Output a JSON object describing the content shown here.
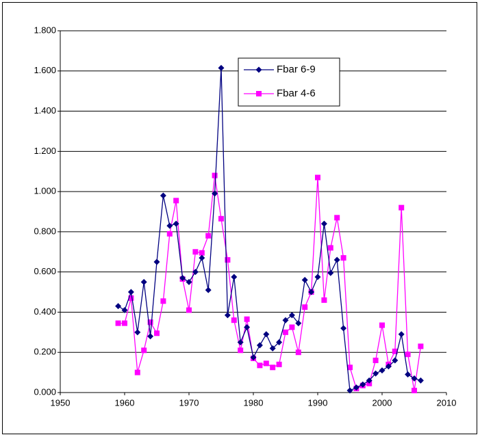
{
  "chart_data": {
    "type": "line",
    "x": [
      1959,
      1960,
      1961,
      1962,
      1963,
      1964,
      1965,
      1966,
      1967,
      1968,
      1969,
      1970,
      1971,
      1972,
      1973,
      1974,
      1975,
      1976,
      1977,
      1978,
      1979,
      1980,
      1981,
      1982,
      1983,
      1984,
      1985,
      1986,
      1987,
      1988,
      1989,
      1990,
      1991,
      1992,
      1993,
      1994,
      1995,
      1996,
      1997,
      1998,
      1999,
      2000,
      2001,
      2002,
      2003,
      2004,
      2005,
      2006
    ],
    "series": [
      {
        "name": "Fbar 6-9",
        "color": "#000080",
        "marker": "diamond",
        "values": [
          0.43,
          0.41,
          0.5,
          0.3,
          0.55,
          0.28,
          0.65,
          0.98,
          0.83,
          0.84,
          0.57,
          0.55,
          0.6,
          0.67,
          0.51,
          0.99,
          1.615,
          0.385,
          0.575,
          0.25,
          0.325,
          0.175,
          0.235,
          0.29,
          0.22,
          0.25,
          0.36,
          0.385,
          0.345,
          0.56,
          0.5,
          0.575,
          0.84,
          0.595,
          0.66,
          0.32,
          0.01,
          0.025,
          0.04,
          0.06,
          0.095,
          0.11,
          0.13,
          0.16,
          0.29,
          0.09,
          0.07,
          0.06
        ]
      },
      {
        "name": "Fbar 4-6",
        "color": "#ff00ff",
        "marker": "square",
        "values": [
          0.345,
          0.345,
          0.47,
          0.1,
          0.21,
          0.35,
          0.295,
          0.455,
          0.79,
          0.955,
          0.565,
          0.41,
          0.7,
          0.695,
          0.78,
          1.08,
          0.865,
          0.66,
          0.36,
          0.21,
          0.365,
          0.17,
          0.135,
          0.145,
          0.125,
          0.14,
          0.3,
          0.325,
          0.2,
          0.425,
          0.5,
          1.07,
          0.46,
          0.72,
          0.87,
          0.67,
          0.125,
          0.02,
          0.035,
          0.045,
          0.16,
          0.335,
          0.14,
          0.205,
          0.92,
          0.19,
          0.01,
          0.23
        ]
      }
    ],
    "xlim": [
      1950,
      2010
    ],
    "xticks": [
      1950,
      1960,
      1970,
      1980,
      1990,
      2000,
      2010
    ],
    "ylim": [
      0,
      1.8
    ],
    "yticks": [
      {
        "value": 0,
        "label": "0.000"
      },
      {
        "value": 0.2,
        "label": "0.200"
      },
      {
        "value": 0.4,
        "label": "0.400"
      },
      {
        "value": 0.6,
        "label": "0.600"
      },
      {
        "value": 0.8,
        "label": "0.800"
      },
      {
        "value": 1.0,
        "label": "1.000"
      },
      {
        "value": 1.2,
        "label": "1.200"
      },
      {
        "value": 1.4,
        "label": "1.400"
      },
      {
        "value": 1.6,
        "label": "1.600"
      },
      {
        "value": 1.8,
        "label": "1.800"
      }
    ],
    "grid": true
  }
}
